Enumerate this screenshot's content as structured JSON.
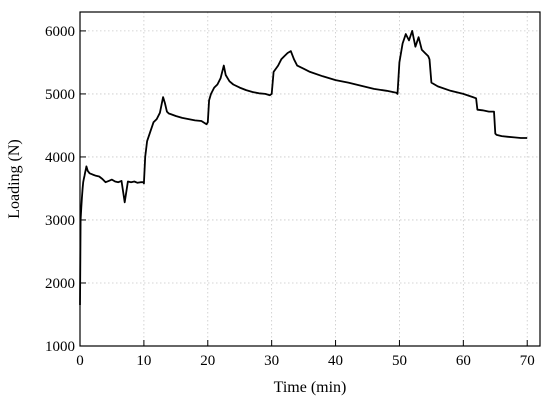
{
  "chart_data": {
    "type": "line",
    "title": "",
    "xlabel": "Time (min)",
    "ylabel": "Loading (N)",
    "xlim": [
      0,
      72
    ],
    "ylim": [
      1000,
      6300
    ],
    "xticks": [
      0,
      10,
      20,
      30,
      40,
      50,
      60,
      70
    ],
    "yticks": [
      1000,
      2000,
      3000,
      4000,
      5000,
      6000
    ],
    "grid": true,
    "legend": "none",
    "series": [
      {
        "color": "#000000",
        "x": [
          0,
          0.1,
          0.2,
          0.3,
          0.4,
          0.5,
          0.6,
          0.7,
          0.8,
          0.9,
          1.0,
          1.2,
          1.5,
          2.0,
          2.5,
          3.0,
          3.5,
          4.0,
          4.5,
          5.0,
          5.5,
          6.0,
          6.5,
          7.0,
          7.5,
          8.0,
          8.5,
          9.0,
          9.5,
          9.9,
          10.0,
          10.2,
          10.5,
          11.0,
          11.5,
          12.0,
          12.5,
          13.0,
          13.3,
          13.6,
          13.9,
          14.2,
          15.0,
          16.0,
          17.0,
          18.0,
          19.0,
          19.8,
          20.0,
          20.2,
          20.5,
          21.0,
          21.5,
          22.0,
          22.5,
          22.8,
          23.1,
          23.4,
          24.0,
          25.0,
          26.0,
          27.0,
          28.0,
          29.0,
          29.7,
          30.0,
          30.3,
          31.0,
          31.5,
          32.0,
          32.5,
          33.0,
          33.5,
          34.0,
          35.0,
          36.0,
          38.0,
          40.0,
          42.0,
          44.0,
          46.0,
          48.0,
          49.5,
          49.7,
          50.0,
          50.5,
          51.0,
          51.5,
          52.0,
          52.5,
          53.0,
          53.5,
          54.0,
          54.5,
          54.7,
          55.0,
          56.0,
          58.0,
          60.0,
          61.5,
          62.0,
          62.2,
          63.0,
          64.0,
          64.8,
          65.0,
          65.2,
          66.0,
          67.0,
          68.0,
          69.0,
          70.0
        ],
        "y": [
          1650,
          3000,
          3200,
          3350,
          3500,
          3600,
          3650,
          3700,
          3750,
          3800,
          3850,
          3780,
          3740,
          3720,
          3700,
          3690,
          3650,
          3600,
          3620,
          3640,
          3610,
          3600,
          3620,
          3280,
          3610,
          3600,
          3610,
          3590,
          3600,
          3600,
          3580,
          4000,
          4250,
          4400,
          4550,
          4600,
          4700,
          4950,
          4850,
          4720,
          4690,
          4680,
          4650,
          4620,
          4600,
          4580,
          4570,
          4520,
          4550,
          4900,
          5000,
          5100,
          5150,
          5250,
          5450,
          5300,
          5250,
          5200,
          5150,
          5100,
          5060,
          5030,
          5010,
          5000,
          4980,
          5000,
          5350,
          5450,
          5550,
          5600,
          5650,
          5680,
          5550,
          5450,
          5400,
          5350,
          5280,
          5220,
          5180,
          5130,
          5080,
          5050,
          5020,
          5000,
          5500,
          5800,
          5950,
          5850,
          6000,
          5750,
          5900,
          5700,
          5650,
          5600,
          5550,
          5180,
          5120,
          5050,
          5000,
          4950,
          4930,
          4750,
          4740,
          4720,
          4720,
          4370,
          4350,
          4330,
          4320,
          4310,
          4300,
          4300
        ]
      }
    ]
  }
}
